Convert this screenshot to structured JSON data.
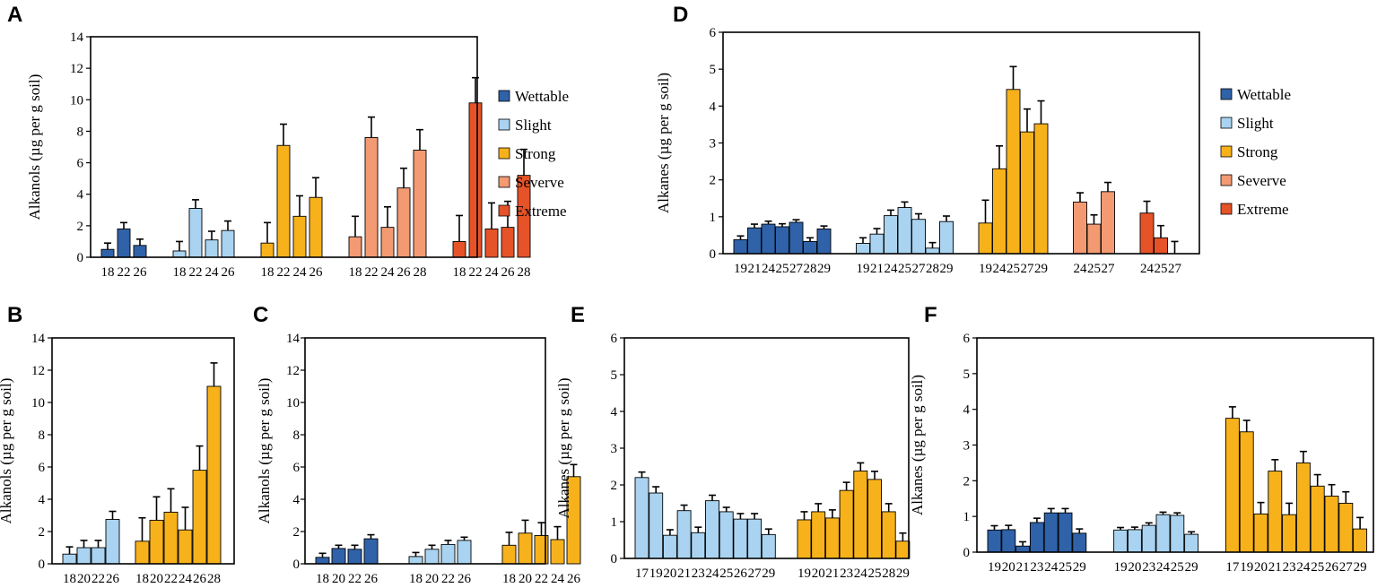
{
  "colors": {
    "Wettable": "#2F62A8",
    "Slight": "#A9D3F0",
    "Strong": "#F7B21B",
    "Severve": "#F39A73",
    "Extreme": "#E65328"
  },
  "legend": [
    "Wettable",
    "Slight",
    "Strong",
    "Severve",
    "Extreme"
  ],
  "chart_data": [
    {
      "panel": "A",
      "type": "bar",
      "ylabel": "Alkanols (µg per g soil)",
      "ylim": [
        0,
        14
      ],
      "yticks": [
        0,
        2,
        4,
        6,
        8,
        10,
        12,
        14
      ],
      "legend": true,
      "groups": [
        {
          "series": "Wettable",
          "labels": [
            "18",
            "22",
            "26"
          ],
          "values": [
            0.5,
            1.8,
            0.75
          ],
          "errors": [
            0.4,
            0.4,
            0.4
          ]
        },
        {
          "series": "Slight",
          "labels": [
            "18",
            "22",
            "24",
            "26"
          ],
          "values": [
            0.4,
            3.1,
            1.1,
            1.7
          ],
          "errors": [
            0.6,
            0.55,
            0.55,
            0.6
          ]
        },
        {
          "series": "Strong",
          "labels": [
            "18",
            "22",
            "24",
            "26"
          ],
          "values": [
            0.9,
            7.1,
            2.6,
            3.8
          ],
          "errors": [
            1.3,
            1.35,
            1.3,
            1.25
          ]
        },
        {
          "series": "Severve",
          "labels": [
            "18",
            "22",
            "24",
            "26",
            "28"
          ],
          "values": [
            1.3,
            7.6,
            1.9,
            4.4,
            6.8
          ],
          "errors": [
            1.3,
            1.3,
            1.3,
            1.25,
            1.3
          ]
        },
        {
          "series": "Extreme",
          "labels": [
            "18",
            "22",
            "24",
            "26",
            "28"
          ],
          "values": [
            1.0,
            9.8,
            1.8,
            1.9,
            5.2
          ],
          "errors": [
            1.65,
            1.6,
            1.65,
            1.65,
            1.65
          ]
        }
      ]
    },
    {
      "panel": "B",
      "type": "bar",
      "ylabel": "Alkanols (µg per g soil)",
      "ylim": [
        0,
        14
      ],
      "yticks": [
        0,
        2,
        4,
        6,
        8,
        10,
        12,
        14
      ],
      "legend": false,
      "groups": [
        {
          "series": "Slight",
          "labels": [
            "18",
            "20",
            "22",
            "26"
          ],
          "values": [
            0.6,
            1.0,
            1.0,
            2.75
          ],
          "errors": [
            0.45,
            0.45,
            0.45,
            0.5
          ]
        },
        {
          "series": "Strong",
          "labels": [
            "18",
            "20",
            "22",
            "24",
            "26",
            "28"
          ],
          "values": [
            1.4,
            2.7,
            3.2,
            2.1,
            5.8,
            11.0
          ],
          "errors": [
            1.45,
            1.45,
            1.45,
            1.4,
            1.5,
            1.45
          ]
        }
      ]
    },
    {
      "panel": "C",
      "type": "bar",
      "ylabel": "Alkanols (µg per g soil)",
      "ylim": [
        0,
        14
      ],
      "yticks": [
        0,
        2,
        4,
        6,
        8,
        10,
        12,
        14
      ],
      "legend": false,
      "groups": [
        {
          "series": "Wettable",
          "labels": [
            "18",
            "20",
            "22",
            "26"
          ],
          "values": [
            0.4,
            0.95,
            0.9,
            1.55
          ],
          "errors": [
            0.25,
            0.2,
            0.25,
            0.25
          ]
        },
        {
          "series": "Slight",
          "labels": [
            "18",
            "20",
            "22",
            "26"
          ],
          "values": [
            0.45,
            0.9,
            1.2,
            1.45
          ],
          "errors": [
            0.25,
            0.25,
            0.25,
            0.2
          ]
        },
        {
          "series": "Strong",
          "labels": [
            "18",
            "20",
            "22",
            "24",
            "26"
          ],
          "values": [
            1.15,
            1.9,
            1.75,
            1.5,
            5.4
          ],
          "errors": [
            0.8,
            0.8,
            0.8,
            0.8,
            0.75
          ]
        }
      ]
    },
    {
      "panel": "D",
      "type": "bar",
      "ylabel": "Alkanes (µg per g soil)",
      "ylim": [
        0,
        6
      ],
      "yticks": [
        0,
        1,
        2,
        3,
        4,
        5,
        6
      ],
      "legend": true,
      "groups": [
        {
          "series": "Wettable",
          "labels": [
            "19",
            "21",
            "24",
            "25",
            "27",
            "28",
            "29"
          ],
          "values": [
            0.38,
            0.7,
            0.8,
            0.73,
            0.85,
            0.33,
            0.67
          ],
          "errors": [
            0.1,
            0.1,
            0.08,
            0.08,
            0.07,
            0.1,
            0.08
          ]
        },
        {
          "series": "Slight",
          "labels": [
            "19",
            "21",
            "24",
            "25",
            "27",
            "28",
            "29"
          ],
          "values": [
            0.28,
            0.53,
            1.03,
            1.25,
            0.93,
            0.15,
            0.87
          ],
          "errors": [
            0.15,
            0.15,
            0.15,
            0.15,
            0.15,
            0.15,
            0.15
          ]
        },
        {
          "series": "Strong",
          "labels": [
            "19",
            "24",
            "25",
            "27",
            "29"
          ],
          "values": [
            0.83,
            2.3,
            4.45,
            3.3,
            3.52
          ],
          "errors": [
            0.62,
            0.62,
            0.62,
            0.62,
            0.62
          ]
        },
        {
          "series": "Severve",
          "labels": [
            "24",
            "25",
            "27"
          ],
          "values": [
            1.4,
            0.8,
            1.68
          ],
          "errors": [
            0.25,
            0.25,
            0.25
          ]
        },
        {
          "series": "Extreme",
          "labels": [
            "24",
            "25",
            "27"
          ],
          "values": [
            1.1,
            0.43,
            0.0
          ],
          "errors": [
            0.32,
            0.33,
            0.33
          ]
        }
      ]
    },
    {
      "panel": "E",
      "type": "bar",
      "ylabel": "Alkanes (µg per g soil)",
      "ylim": [
        0,
        6
      ],
      "yticks": [
        0,
        1,
        2,
        3,
        4,
        5,
        6
      ],
      "legend": false,
      "groups": [
        {
          "series": "Slight",
          "labels": [
            "17",
            "19",
            "20",
            "21",
            "23",
            "24",
            "25",
            "26",
            "27",
            "29"
          ],
          "values": [
            2.2,
            1.78,
            0.63,
            1.3,
            0.7,
            1.57,
            1.27,
            1.07,
            1.07,
            0.65
          ],
          "errors": [
            0.15,
            0.17,
            0.15,
            0.15,
            0.15,
            0.15,
            0.12,
            0.15,
            0.15,
            0.15
          ]
        },
        {
          "series": "Strong",
          "labels": [
            "19",
            "20",
            "21",
            "23",
            "24",
            "25",
            "28",
            "29"
          ],
          "values": [
            1.05,
            1.27,
            1.1,
            1.85,
            2.38,
            2.15,
            1.27,
            0.47
          ],
          "errors": [
            0.22,
            0.22,
            0.22,
            0.22,
            0.22,
            0.22,
            0.22,
            0.22
          ]
        }
      ]
    },
    {
      "panel": "F",
      "type": "bar",
      "ylabel": "Alkanes (µg per g soil)",
      "ylim": [
        0,
        6
      ],
      "yticks": [
        0,
        1,
        2,
        3,
        4,
        5,
        6
      ],
      "legend": false,
      "groups": [
        {
          "series": "Wettable",
          "labels": [
            "19",
            "20",
            "21",
            "23",
            "24",
            "25",
            "29"
          ],
          "values": [
            0.62,
            0.63,
            0.17,
            0.83,
            1.1,
            1.1,
            0.53
          ],
          "errors": [
            0.12,
            0.12,
            0.12,
            0.12,
            0.12,
            0.12,
            0.12
          ]
        },
        {
          "series": "Slight",
          "labels": [
            "19",
            "20",
            "23",
            "24",
            "25",
            "29"
          ],
          "values": [
            0.62,
            0.63,
            0.75,
            1.05,
            1.03,
            0.5
          ],
          "errors": [
            0.07,
            0.07,
            0.07,
            0.07,
            0.07,
            0.07
          ]
        },
        {
          "series": "Strong",
          "labels": [
            "17",
            "19",
            "20",
            "21",
            "23",
            "24",
            "25",
            "26",
            "27",
            "29"
          ],
          "values": [
            3.75,
            3.37,
            1.07,
            2.27,
            1.05,
            2.5,
            1.85,
            1.57,
            1.37,
            0.65
          ],
          "errors": [
            0.32,
            0.32,
            0.32,
            0.32,
            0.32,
            0.32,
            0.32,
            0.32,
            0.32,
            0.32
          ]
        }
      ]
    }
  ]
}
